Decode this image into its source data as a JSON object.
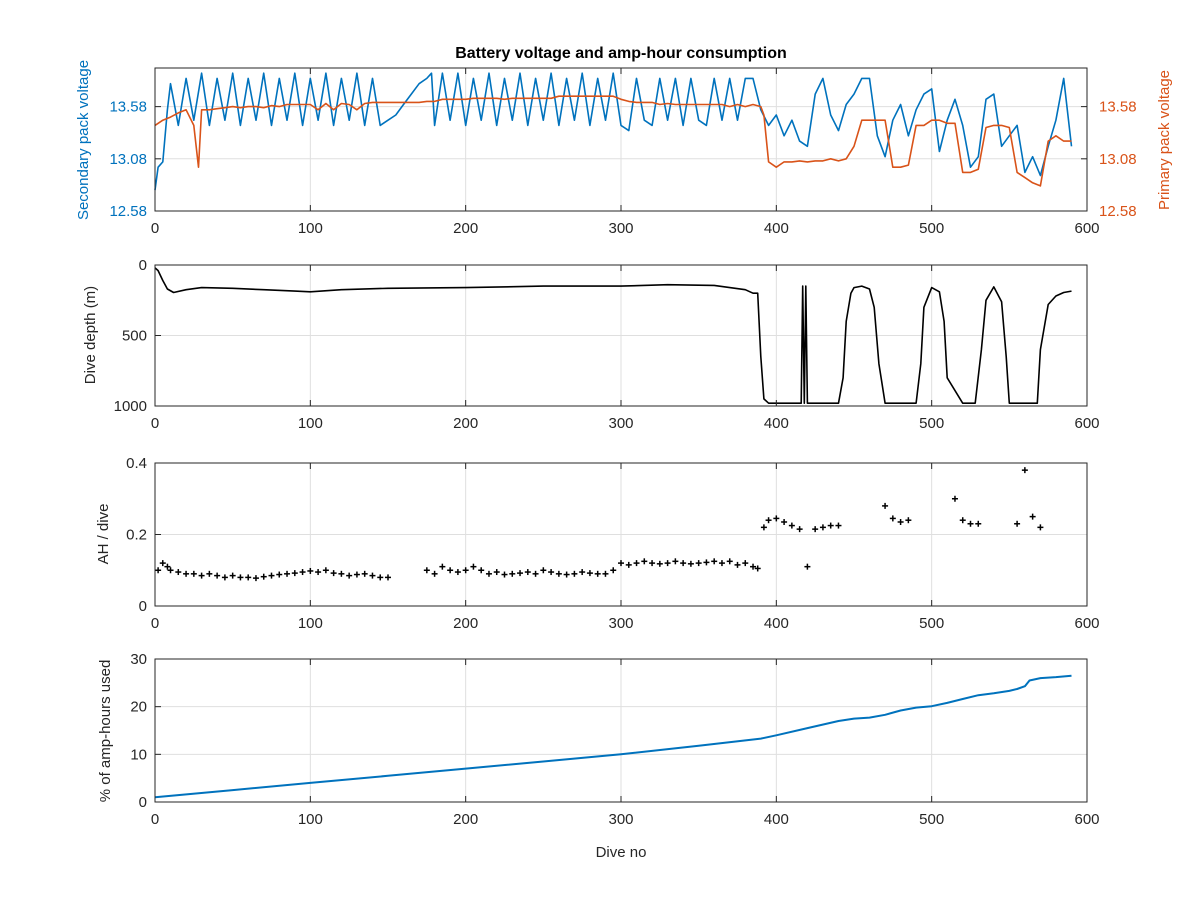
{
  "chart_data": [
    {
      "id": "voltage",
      "type": "line",
      "title": "Battery voltage and amp-hour consumption",
      "xlabel": "",
      "ylabel_left": "Secondary pack voltage",
      "ylabel_right": "Primary pack voltage",
      "xlim": [
        0,
        600
      ],
      "ylim": [
        12.58,
        13.95
      ],
      "xticks": [
        "0",
        "100",
        "200",
        "300",
        "400",
        "500",
        "600"
      ],
      "yticks": [
        "12.58",
        "13.08",
        "13.58"
      ],
      "grid": true,
      "colors": {
        "left": "#0072bd",
        "right": "#d95319"
      },
      "series": [
        {
          "axis": "left",
          "x": [
            0,
            2,
            5,
            8,
            10,
            15,
            20,
            25,
            30,
            35,
            40,
            45,
            50,
            55,
            60,
            65,
            70,
            75,
            80,
            85,
            90,
            95,
            100,
            105,
            110,
            115,
            120,
            125,
            130,
            135,
            140,
            145,
            150,
            155,
            160,
            165,
            170,
            175,
            178,
            180,
            185,
            190,
            195,
            200,
            205,
            210,
            215,
            220,
            225,
            230,
            235,
            240,
            245,
            250,
            255,
            260,
            265,
            270,
            275,
            280,
            285,
            290,
            295,
            300,
            305,
            310,
            315,
            320,
            325,
            330,
            335,
            340,
            345,
            350,
            355,
            360,
            365,
            370,
            375,
            380,
            385,
            390,
            395,
            400,
            405,
            410,
            415,
            420,
            425,
            430,
            435,
            440,
            445,
            450,
            455,
            460,
            465,
            470,
            475,
            480,
            485,
            490,
            495,
            500,
            505,
            510,
            515,
            520,
            525,
            530,
            535,
            540,
            545,
            550,
            555,
            560,
            565,
            570,
            575,
            580,
            585,
            590
          ],
          "y": [
            12.78,
            13.0,
            13.05,
            13.55,
            13.8,
            13.4,
            13.85,
            13.45,
            13.9,
            13.4,
            13.85,
            13.45,
            13.9,
            13.4,
            13.85,
            13.45,
            13.9,
            13.4,
            13.85,
            13.45,
            13.9,
            13.4,
            13.85,
            13.45,
            13.9,
            13.4,
            13.85,
            13.45,
            13.9,
            13.4,
            13.85,
            13.4,
            13.45,
            13.5,
            13.6,
            13.7,
            13.8,
            13.85,
            13.9,
            13.4,
            13.9,
            13.45,
            13.9,
            13.4,
            13.85,
            13.45,
            13.9,
            13.4,
            13.85,
            13.45,
            13.9,
            13.4,
            13.85,
            13.45,
            13.9,
            13.4,
            13.85,
            13.45,
            13.9,
            13.4,
            13.85,
            13.45,
            13.9,
            13.4,
            13.35,
            13.85,
            13.45,
            13.4,
            13.85,
            13.45,
            13.85,
            13.4,
            13.85,
            13.45,
            13.4,
            13.85,
            13.45,
            13.85,
            13.45,
            13.85,
            13.85,
            13.55,
            13.4,
            13.5,
            13.3,
            13.45,
            13.25,
            13.2,
            13.7,
            13.85,
            13.5,
            13.35,
            13.6,
            13.7,
            13.85,
            13.85,
            13.3,
            13.1,
            13.45,
            13.6,
            13.3,
            13.55,
            13.7,
            13.75,
            13.15,
            13.45,
            13.65,
            13.4,
            13.0,
            13.1,
            13.65,
            13.7,
            13.2,
            13.3,
            13.4,
            12.95,
            13.1,
            12.92,
            13.2,
            13.45,
            13.85,
            13.2
          ]
        },
        {
          "axis": "right",
          "x": [
            0,
            5,
            10,
            15,
            20,
            25,
            28,
            30,
            35,
            40,
            45,
            50,
            55,
            60,
            65,
            70,
            75,
            80,
            85,
            90,
            95,
            100,
            105,
            110,
            115,
            120,
            125,
            130,
            135,
            140,
            145,
            150,
            155,
            160,
            165,
            170,
            175,
            180,
            185,
            190,
            195,
            200,
            205,
            210,
            215,
            220,
            225,
            230,
            235,
            240,
            245,
            250,
            255,
            260,
            265,
            270,
            275,
            280,
            285,
            290,
            295,
            300,
            305,
            310,
            315,
            320,
            325,
            330,
            335,
            340,
            345,
            350,
            355,
            360,
            365,
            370,
            375,
            380,
            385,
            390,
            392,
            395,
            400,
            405,
            410,
            415,
            420,
            425,
            430,
            435,
            440,
            445,
            450,
            455,
            460,
            465,
            470,
            475,
            480,
            485,
            490,
            495,
            500,
            505,
            510,
            515,
            520,
            525,
            530,
            535,
            540,
            545,
            550,
            555,
            560,
            565,
            570,
            575,
            580,
            585,
            590
          ],
          "y": [
            13.4,
            13.45,
            13.48,
            13.52,
            13.55,
            13.4,
            13.0,
            13.55,
            13.55,
            13.56,
            13.57,
            13.58,
            13.57,
            13.58,
            13.58,
            13.57,
            13.59,
            13.58,
            13.6,
            13.6,
            13.6,
            13.6,
            13.55,
            13.61,
            13.55,
            13.61,
            13.6,
            13.55,
            13.61,
            13.62,
            13.62,
            13.62,
            13.62,
            13.62,
            13.62,
            13.62,
            13.63,
            13.63,
            13.65,
            13.65,
            13.65,
            13.65,
            13.66,
            13.66,
            13.66,
            13.66,
            13.65,
            13.66,
            13.66,
            13.66,
            13.66,
            13.66,
            13.66,
            13.68,
            13.68,
            13.68,
            13.68,
            13.68,
            13.68,
            13.68,
            13.68,
            13.65,
            13.63,
            13.62,
            13.62,
            13.62,
            13.6,
            13.61,
            13.6,
            13.6,
            13.6,
            13.6,
            13.6,
            13.6,
            13.6,
            13.58,
            13.6,
            13.58,
            13.6,
            13.58,
            13.5,
            13.05,
            13.0,
            13.05,
            13.05,
            13.06,
            13.05,
            13.06,
            13.06,
            13.08,
            13.06,
            13.08,
            13.2,
            13.45,
            13.45,
            13.45,
            13.45,
            13.0,
            13.0,
            13.02,
            13.4,
            13.4,
            13.45,
            13.45,
            13.42,
            13.42,
            12.95,
            12.95,
            12.98,
            13.38,
            13.4,
            13.4,
            13.38,
            12.95,
            12.9,
            12.85,
            12.82,
            13.25,
            13.3,
            13.25,
            13.25
          ]
        }
      ]
    },
    {
      "id": "depth",
      "type": "line",
      "title": "",
      "xlabel": "",
      "ylabel": "Dive depth (m)",
      "xlim": [
        0,
        600
      ],
      "ylim": [
        0,
        1000
      ],
      "y_reversed": true,
      "xticks": [
        "0",
        "100",
        "200",
        "300",
        "400",
        "500",
        "600"
      ],
      "yticks": [
        "0",
        "500",
        "1000"
      ],
      "grid": true,
      "colors": {
        "line": "#000000"
      },
      "series": [
        {
          "x": [
            0,
            2,
            5,
            8,
            12,
            20,
            30,
            50,
            70,
            90,
            100,
            120,
            150,
            200,
            250,
            300,
            330,
            360,
            380,
            385,
            388,
            390,
            392,
            395,
            400,
            410,
            416,
            417,
            418,
            419,
            420,
            422,
            430,
            440,
            443,
            445,
            448,
            450,
            455,
            460,
            463,
            466,
            470,
            480,
            490,
            493,
            495,
            500,
            505,
            508,
            510,
            520,
            528,
            532,
            535,
            540,
            545,
            548,
            550,
            560,
            568,
            570,
            575,
            580,
            585,
            590
          ],
          "y": [
            20,
            40,
            110,
            170,
            195,
            175,
            160,
            165,
            175,
            185,
            190,
            175,
            165,
            160,
            150,
            150,
            140,
            145,
            175,
            200,
            200,
            650,
            950,
            980,
            980,
            980,
            980,
            150,
            980,
            150,
            980,
            980,
            980,
            980,
            800,
            400,
            200,
            160,
            150,
            170,
            300,
            700,
            980,
            980,
            980,
            700,
            300,
            160,
            190,
            400,
            800,
            980,
            980,
            600,
            250,
            155,
            260,
            650,
            980,
            980,
            980,
            600,
            280,
            220,
            195,
            185
          ]
        }
      ]
    },
    {
      "id": "ah",
      "type": "scatter",
      "title": "",
      "xlabel": "",
      "ylabel": "AH / dive",
      "xlim": [
        0,
        600
      ],
      "ylim": [
        0,
        0.4
      ],
      "xticks": [
        "0",
        "100",
        "200",
        "300",
        "400",
        "500",
        "600"
      ],
      "yticks": [
        "0",
        "0.2",
        "0.4"
      ],
      "grid": true,
      "colors": {
        "marker": "#000000"
      },
      "series": [
        {
          "x": [
            2,
            5,
            8,
            10,
            15,
            20,
            25,
            30,
            35,
            40,
            45,
            50,
            55,
            60,
            65,
            70,
            75,
            80,
            85,
            90,
            95,
            100,
            105,
            110,
            115,
            120,
            125,
            130,
            135,
            140,
            145,
            150,
            175,
            180,
            185,
            190,
            195,
            200,
            205,
            210,
            215,
            220,
            225,
            230,
            235,
            240,
            245,
            250,
            255,
            260,
            265,
            270,
            275,
            280,
            285,
            290,
            295,
            300,
            305,
            310,
            315,
            320,
            325,
            330,
            335,
            340,
            345,
            350,
            355,
            360,
            365,
            370,
            375,
            380,
            385,
            388,
            392,
            395,
            400,
            405,
            410,
            415,
            420,
            425,
            430,
            435,
            440,
            470,
            475,
            480,
            485,
            515,
            520,
            525,
            530,
            555,
            560,
            565,
            570
          ],
          "y": [
            0.1,
            0.12,
            0.11,
            0.1,
            0.095,
            0.09,
            0.09,
            0.085,
            0.09,
            0.085,
            0.08,
            0.085,
            0.08,
            0.08,
            0.078,
            0.082,
            0.085,
            0.088,
            0.09,
            0.092,
            0.095,
            0.098,
            0.095,
            0.1,
            0.092,
            0.09,
            0.085,
            0.088,
            0.09,
            0.085,
            0.08,
            0.08,
            0.1,
            0.09,
            0.11,
            0.1,
            0.095,
            0.1,
            0.11,
            0.1,
            0.09,
            0.095,
            0.088,
            0.09,
            0.092,
            0.095,
            0.09,
            0.1,
            0.095,
            0.09,
            0.088,
            0.09,
            0.095,
            0.092,
            0.09,
            0.09,
            0.1,
            0.12,
            0.115,
            0.12,
            0.125,
            0.12,
            0.118,
            0.12,
            0.125,
            0.12,
            0.118,
            0.12,
            0.122,
            0.125,
            0.12,
            0.125,
            0.115,
            0.12,
            0.11,
            0.105,
            0.22,
            0.24,
            0.245,
            0.235,
            0.225,
            0.215,
            0.11,
            0.215,
            0.22,
            0.225,
            0.225,
            0.28,
            0.245,
            0.235,
            0.24,
            0.3,
            0.24,
            0.23,
            0.23,
            0.23,
            0.38,
            0.25,
            0.22
          ]
        }
      ]
    },
    {
      "id": "pct",
      "type": "line",
      "title": "",
      "xlabel": "Dive no",
      "ylabel": "% of amp-hours used",
      "xlim": [
        0,
        600
      ],
      "ylim": [
        0,
        30
      ],
      "xticks": [
        "0",
        "100",
        "200",
        "300",
        "400",
        "500",
        "600"
      ],
      "yticks": [
        "0",
        "10",
        "20",
        "30"
      ],
      "grid": true,
      "colors": {
        "line": "#0072bd"
      },
      "series": [
        {
          "x": [
            0,
            50,
            100,
            150,
            200,
            250,
            300,
            350,
            390,
            400,
            420,
            440,
            450,
            460,
            470,
            480,
            490,
            500,
            510,
            520,
            530,
            540,
            550,
            555,
            560,
            563,
            570,
            580,
            590
          ],
          "y": [
            1.0,
            2.5,
            4.0,
            5.5,
            7.0,
            8.5,
            10.0,
            11.8,
            13.3,
            14.0,
            15.5,
            17.0,
            17.5,
            17.7,
            18.3,
            19.2,
            19.8,
            20.1,
            20.8,
            21.6,
            22.4,
            22.8,
            23.3,
            23.7,
            24.3,
            25.5,
            26.0,
            26.2,
            26.5
          ]
        }
      ]
    }
  ]
}
